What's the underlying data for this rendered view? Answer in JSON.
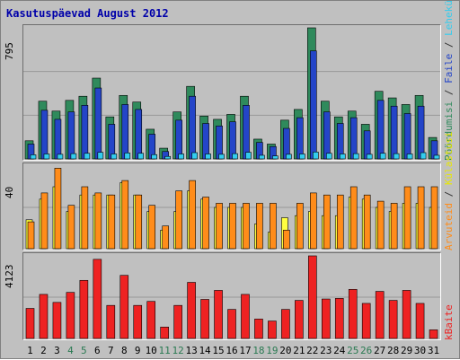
{
  "title": "Kasutuspäevad August 2012",
  "chart_data": {
    "type": "bar",
    "title": "Kasutuspäevad August 2012",
    "categories": [
      "1",
      "2",
      "3",
      "4",
      "5",
      "6",
      "7",
      "8",
      "9",
      "10",
      "11",
      "12",
      "13",
      "14",
      "15",
      "16",
      "17",
      "18",
      "19",
      "20",
      "21",
      "22",
      "23",
      "24",
      "25",
      "26",
      "27",
      "28",
      "29",
      "30",
      "31"
    ],
    "weekend_days": [
      "4",
      "5",
      "11",
      "12",
      "18",
      "19",
      "25",
      "26"
    ],
    "colors": {
      "weekday_label": "#000000",
      "weekend_label": "#2a7a52",
      "visits": "#2f8a5c",
      "pages": "#2445c8",
      "files": "#33ccee",
      "hits": "#ff8c1a",
      "sites": "#ffff40",
      "kbytes": "#ee2222",
      "grid": "#999999"
    },
    "panels": [
      {
        "id": "top",
        "ymax_label": "795",
        "ylim": [
          0,
          795
        ],
        "right_labels": [
          {
            "text": "Pöördumisi",
            "color": "#2f8a5c"
          },
          {
            "text": " / ",
            "color": "#333333"
          },
          {
            "text": "Faile",
            "color": "#2445c8"
          },
          {
            "text": " / ",
            "color": "#333333"
          },
          {
            "text": "Lehekülgi",
            "color": "#33ccee"
          }
        ],
        "series": [
          {
            "name": "Pöördumisi",
            "values": [
              110,
              350,
              290,
              355,
              380,
              490,
              255,
              385,
              345,
              180,
              65,
              285,
              440,
              260,
              240,
              270,
              380,
              120,
              90,
              235,
              300,
              795,
              350,
              255,
              290,
              210,
              410,
              370,
              330,
              385,
              130
            ]
          },
          {
            "name": "Faile",
            "values": [
              90,
              295,
              240,
              285,
              325,
              430,
              210,
              330,
              300,
              150,
              45,
              235,
              380,
              215,
              200,
              225,
              325,
              100,
              75,
              185,
              250,
              655,
              285,
              215,
              250,
              170,
              355,
              320,
              275,
              320,
              110
            ]
          },
          {
            "name": "Lehekülgi",
            "values": [
              25,
              30,
              28,
              32,
              34,
              40,
              30,
              36,
              34,
              26,
              15,
              30,
              38,
              30,
              28,
              32,
              40,
              22,
              18,
              28,
              30,
              42,
              34,
              30,
              32,
              28,
              34,
              32,
              30,
              38,
              22
            ]
          }
        ]
      },
      {
        "id": "middle",
        "ymax_label": "40",
        "ylim": [
          0,
          40
        ],
        "right_labels": [
          {
            "text": "Arvuteid",
            "color": "#ff8c1a"
          },
          {
            "text": " / ",
            "color": "#333333"
          },
          {
            "text": "Külastusi",
            "color": "#e8e800"
          }
        ],
        "series": [
          {
            "name": "Arvuteid",
            "values": [
              13,
              27,
              39,
              21,
              30,
              27,
              26,
              33,
              26,
              21,
              11,
              28,
              33,
              25,
              22,
              22,
              22,
              22,
              22,
              9,
              22,
              27,
              26,
              26,
              30,
              26,
              23,
              22,
              30,
              30,
              30
            ]
          },
          {
            "name": "Külastusi",
            "values": [
              14,
              24,
              30,
              18,
              26,
              26,
              26,
              32,
              26,
              18,
              9,
              18,
              28,
              24,
              20,
              20,
              20,
              12,
              8,
              15,
              16,
              18,
              16,
              16,
              25,
              24,
              20,
              18,
              22,
              22,
              20
            ]
          }
        ]
      },
      {
        "id": "bottom",
        "ymax_label": "4123",
        "ylim": [
          0,
          4123
        ],
        "right_labels": [
          {
            "text": "kBaite",
            "color": "#ee2222"
          }
        ],
        "series": [
          {
            "name": "kBaite",
            "values": [
              1500,
              2200,
              1800,
              2300,
              2900,
              3950,
              1650,
              3150,
              1650,
              1850,
              570,
              1650,
              2800,
              1950,
              2400,
              1450,
              2200,
              970,
              870,
              1450,
              1900,
              4123,
              1970,
              2000,
              2450,
              1750,
              2350,
              1900,
              2400,
              1750,
              430
            ]
          }
        ]
      }
    ]
  }
}
